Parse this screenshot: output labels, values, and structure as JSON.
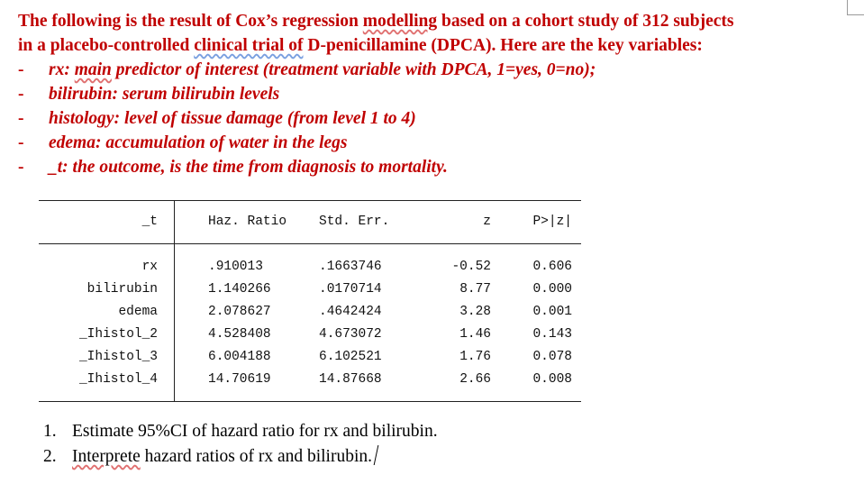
{
  "intro": {
    "line1_a": "The following is the result of Cox’s regression ",
    "line1_b": "modelling",
    "line1_c": " based on a cohort study of 312 subjects",
    "line2_a": "in a placebo-controlled ",
    "line2_b": "clinical trial of",
    "line2_c": " D-penicillamine (DPCA). Here are the key variables:"
  },
  "variables": [
    {
      "dash": "-",
      "pre": "rx: ",
      "link": "main",
      "post": " predictor of interest (treatment variable with DPCA, 1=yes, 0=no);"
    },
    {
      "dash": "-",
      "pre": "bilirubin: serum bilirubin levels",
      "link": "",
      "post": ""
    },
    {
      "dash": "-",
      "pre": "histology: level of tissue damage (from level 1 to 4)",
      "link": "",
      "post": ""
    },
    {
      "dash": "-",
      "pre": "edema: accumulation of water in the legs",
      "link": "",
      "post": ""
    },
    {
      "dash": "-",
      "pre": "_t: the outcome, is the time from diagnosis to mortality.",
      "link": "",
      "post": ""
    }
  ],
  "table": {
    "headers": {
      "name": "_t",
      "hr": "Haz. Ratio",
      "se": "Std. Err.",
      "z": "z",
      "p": "P>|z|"
    },
    "rows": [
      {
        "name": "rx",
        "hr": ".910013",
        "se": ".1663746",
        "z": "-0.52",
        "p": "0.606"
      },
      {
        "name": "bilirubin",
        "hr": "1.140266",
        "se": ".0170714",
        "z": "8.77",
        "p": "0.000"
      },
      {
        "name": "edema",
        "hr": "2.078627",
        "se": ".4642424",
        "z": "3.28",
        "p": "0.001"
      },
      {
        "name": "_Ihistol_2",
        "hr": "4.528408",
        "se": "4.673072",
        "z": "1.46",
        "p": "0.143"
      },
      {
        "name": "_Ihistol_3",
        "hr": "6.004188",
        "se": "6.102521",
        "z": "1.76",
        "p": "0.078"
      },
      {
        "name": "_Ihistol_4",
        "hr": "14.70619",
        "se": "14.87668",
        "z": "2.66",
        "p": "0.008"
      }
    ]
  },
  "questions": [
    {
      "num": "1.",
      "pre": "Estimate 95%CI of hazard ratio for rx and bilirubin.",
      "link": "",
      "post": ""
    },
    {
      "num": "2.",
      "pre": "",
      "link": "Interprete",
      "post": " hazard ratios of rx and bilirubin."
    }
  ]
}
